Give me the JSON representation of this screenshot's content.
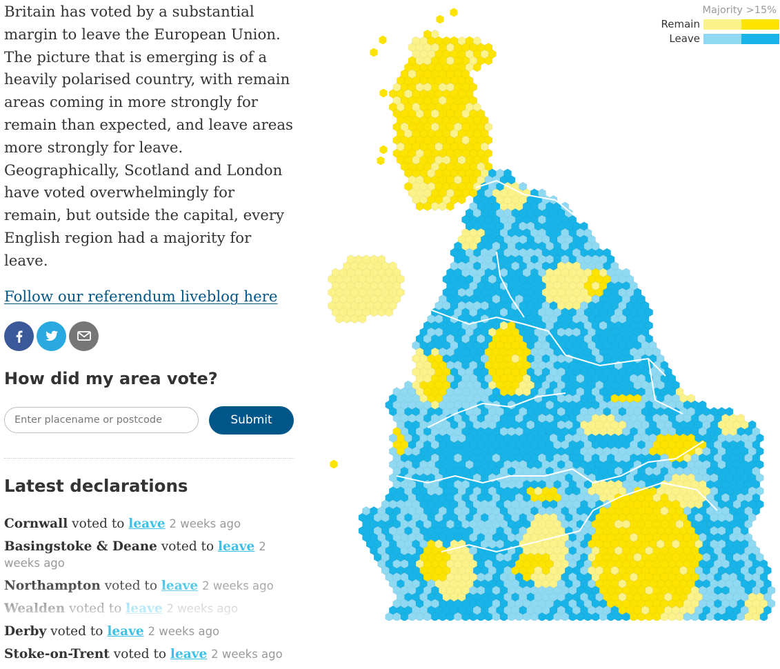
{
  "intro": "Britain has voted by a substantial margin to leave the European Union. The picture that is emerging is of a heavily polarised country, with remain areas coming in more strongly for remain than expected, and leave areas more strongly for leave. Geographically, Scotland and London have voted overwhelmingly for remain, but outside the capital, every English region had a majority for leave.",
  "liveblog_link": "Follow our referendum liveblog here",
  "share": [
    {
      "network": "facebook",
      "icon": "facebook-icon",
      "color": "#3b5998"
    },
    {
      "network": "twitter",
      "icon": "twitter-icon",
      "color": "#2aa9e0"
    },
    {
      "network": "email",
      "icon": "email-icon",
      "color": "#767676"
    }
  ],
  "lookup": {
    "title": "How did my area vote?",
    "placeholder": "Enter placename or postcode",
    "submit_label": "Submit"
  },
  "declarations": {
    "title": "Latest declarations",
    "items": [
      {
        "area": "Cornwall",
        "verb": "voted to",
        "result": "leave",
        "time": "2 weeks ago"
      },
      {
        "area": "Basingstoke & Deane",
        "verb": "voted to",
        "result": "leave",
        "time": "2 weeks ago"
      },
      {
        "area": "Northampton",
        "verb": "voted to",
        "result": "leave",
        "time": "2 weeks ago"
      },
      {
        "area": "Wealden",
        "verb": "voted to",
        "result": "leave",
        "time": "2 weeks ago"
      },
      {
        "area": "Derby",
        "verb": "voted to",
        "result": "leave",
        "time": "2 weeks ago"
      },
      {
        "area": "Stoke-on-Trent",
        "verb": "voted to",
        "result": "leave",
        "time": "2 weeks ago"
      }
    ]
  },
  "legend": {
    "caption": "Majority >15%",
    "rows": [
      {
        "label": "Remain",
        "color_light": "#fbf28a",
        "color_strong": "#fde300"
      },
      {
        "label": "Leave",
        "color_light": "#8fd9f2",
        "color_strong": "#18b4e8"
      }
    ]
  },
  "colors": {
    "remain_light": "#fbf28a",
    "remain_strong": "#fde300",
    "leave_light": "#8fd9f2",
    "leave_strong": "#18b4e8",
    "link": "#005689",
    "leave_text": "#3ec1e6"
  }
}
